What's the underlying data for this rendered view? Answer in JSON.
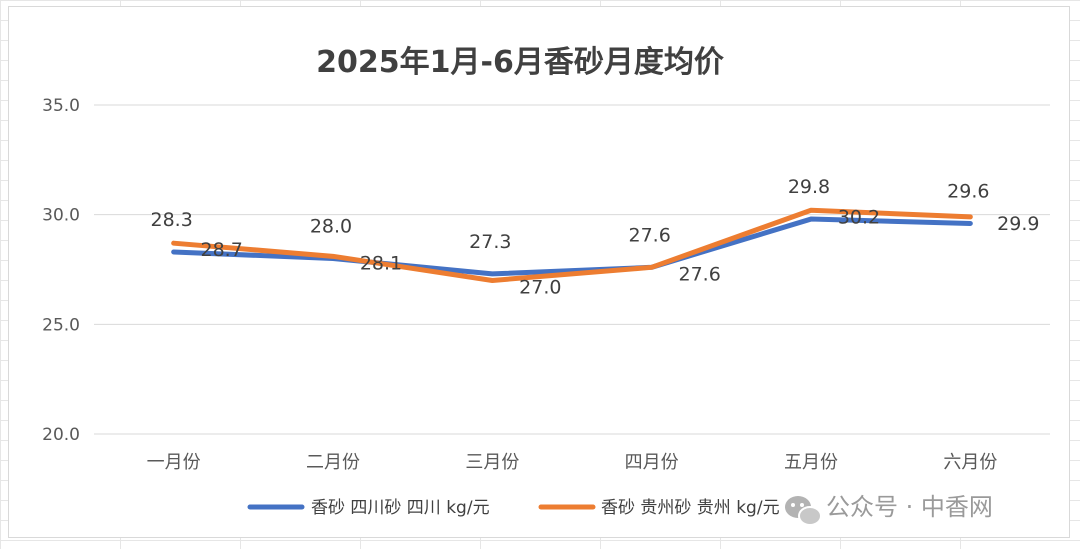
{
  "chart_data": {
    "type": "line",
    "title": "2025年1月-6月香砂月度均价",
    "categories": [
      "一月份",
      "二月份",
      "三月份",
      "四月份",
      "五月份",
      "六月份"
    ],
    "ylim": [
      20.0,
      35.0
    ],
    "yticks": [
      "20.0",
      "25.0",
      "30.0",
      "35.0"
    ],
    "ytick_values": [
      20,
      25,
      30,
      35
    ],
    "grid": true,
    "legend_position": "bottom",
    "series": [
      {
        "name": "香砂 四川砂 四川 kg/元",
        "color": "#4472C4",
        "values": [
          28.3,
          28.0,
          27.3,
          27.6,
          29.8,
          29.6
        ],
        "labels": [
          "28.3",
          "28.0",
          "27.3",
          "27.6",
          "29.8",
          "29.6"
        ]
      },
      {
        "name": "香砂 贵州砂 贵州 kg/元",
        "color": "#ED7D31",
        "values": [
          28.7,
          28.1,
          27.0,
          27.6,
          30.2,
          29.9
        ],
        "labels": [
          "28.7",
          "28.1",
          "27.0",
          "27.6",
          "30.2",
          "29.9"
        ]
      }
    ]
  },
  "watermark": {
    "icon": "wechat-icon",
    "text": "公众号 · 中香网"
  }
}
